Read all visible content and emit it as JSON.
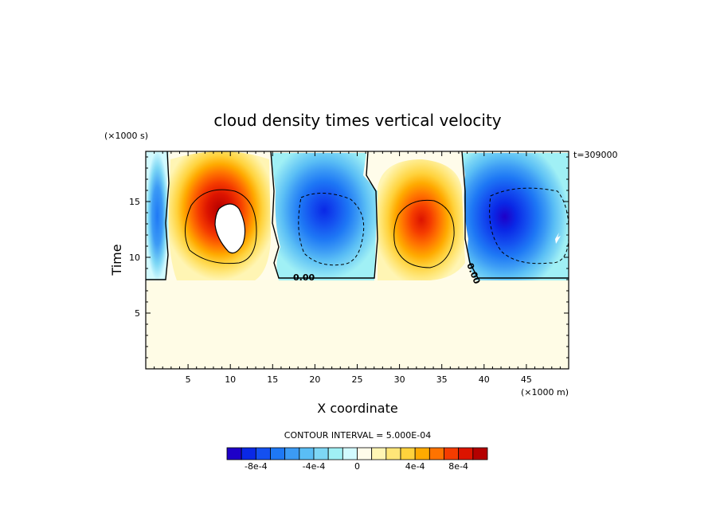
{
  "chart_data": {
    "type": "heatmap",
    "title": "cloud density times vertical velocity",
    "xlabel": "X coordinate",
    "ylabel": "Time",
    "x_unit": "(×1000 m)",
    "y_unit": "(×1000 s)",
    "timestamp": "t=309000",
    "xlim": [
      0,
      50
    ],
    "ylim": [
      0,
      19.5
    ],
    "x_ticks": [
      5,
      10,
      15,
      20,
      25,
      30,
      35,
      40,
      45
    ],
    "y_ticks": [
      5,
      10,
      15
    ],
    "contour_interval_label": "CONTOUR INTERVAL = 5.000E-04",
    "contour_zero_label": "0.00",
    "background_value_color": "#fffce6",
    "colorbar": {
      "colors": [
        "#1e00c8",
        "#0a28e6",
        "#1450f0",
        "#1e78f5",
        "#3c9bf5",
        "#5abef5",
        "#7dd7f5",
        "#a0f0f5",
        "#d2faff",
        "#fffcea",
        "#fff5b4",
        "#ffe678",
        "#ffd23c",
        "#ffaa00",
        "#ff7300",
        "#f53c00",
        "#dc1400",
        "#b40000"
      ],
      "tick_labels": [
        "-8e-4",
        "-4e-4",
        "0",
        "4e-4",
        "8e-4"
      ]
    },
    "cells": [
      {
        "x": 0.9,
        "y": 13.0,
        "rx": 1.5,
        "ry": 3.6,
        "value": -0.0006
      },
      {
        "x": 9.6,
        "y": 13.8,
        "rx": 6.0,
        "ry": 5.8,
        "value": 0.0012
      },
      {
        "x": 21.5,
        "y": 13.2,
        "rx": 6.5,
        "ry": 5.8,
        "value": -0.00065
      },
      {
        "x": 32.5,
        "y": 13.0,
        "rx": 5.2,
        "ry": 4.9,
        "value": 0.0008
      },
      {
        "x": 45.5,
        "y": 13.5,
        "rx": 8.0,
        "ry": 5.8,
        "value": -0.001
      }
    ]
  }
}
